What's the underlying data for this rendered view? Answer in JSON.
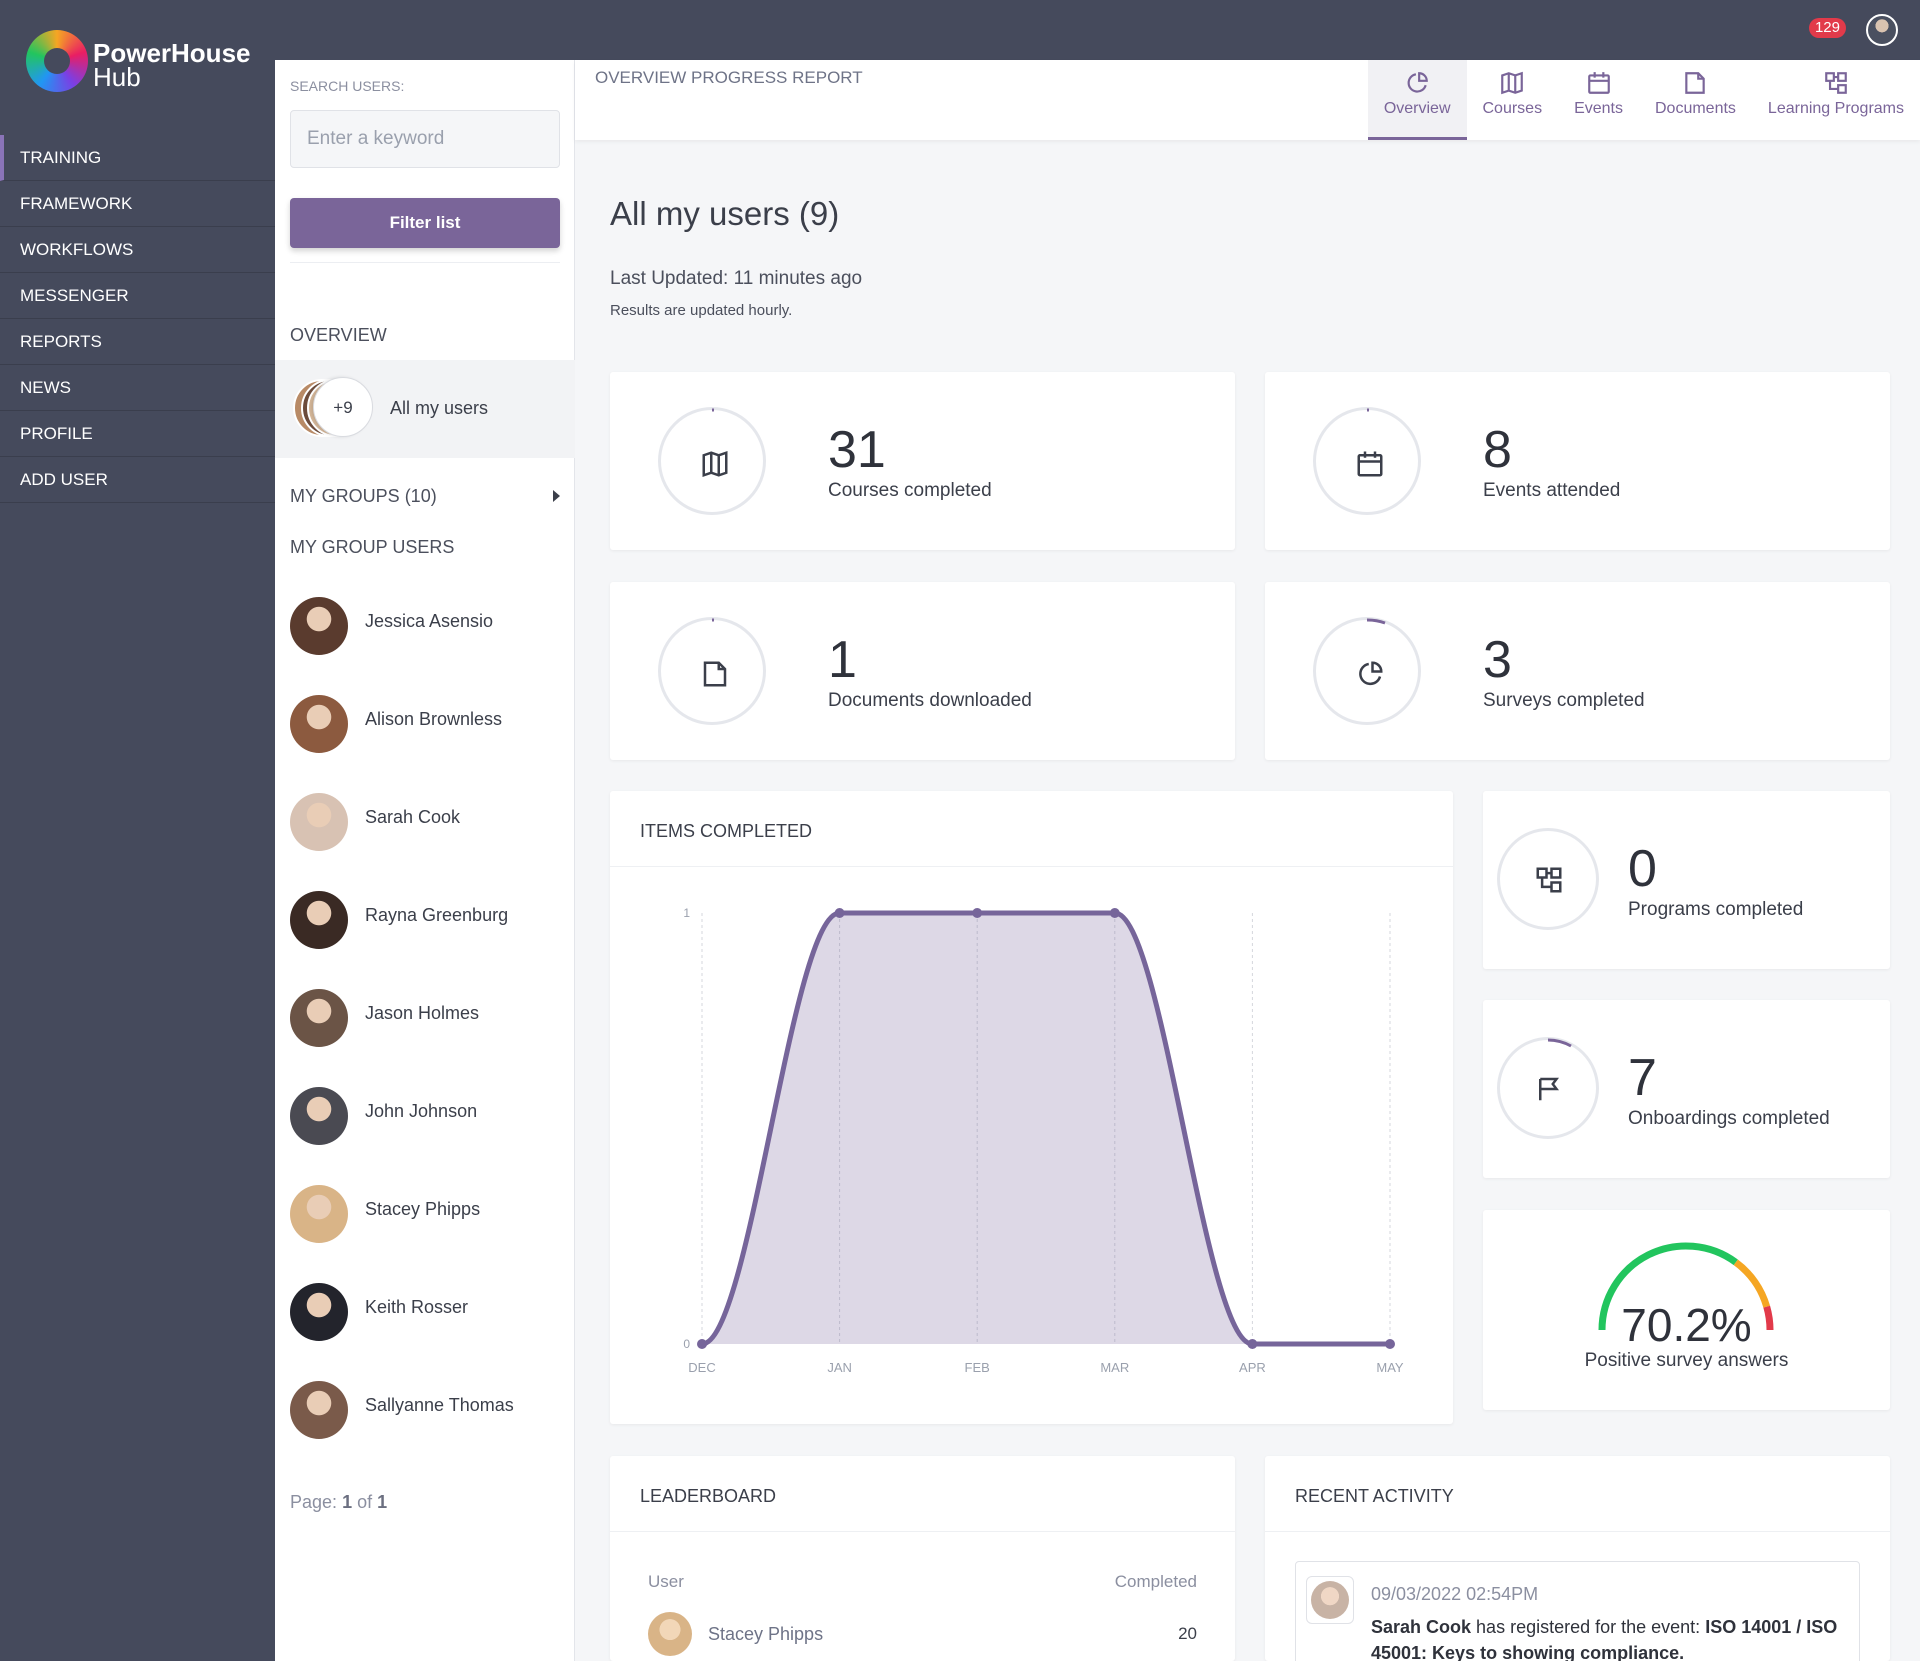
{
  "brand": {
    "name_bold": "PowerHouse",
    "name_light": "Hub"
  },
  "topbar": {
    "notification_count": "129"
  },
  "nav": {
    "items": [
      "TRAINING",
      "FRAMEWORK",
      "WORKFLOWS",
      "MESSENGER",
      "REPORTS",
      "NEWS",
      "PROFILE",
      "ADD USER"
    ],
    "active": "TRAINING"
  },
  "panel": {
    "search_label": "SEARCH USERS:",
    "search_placeholder": "Enter a keyword",
    "filter_button": "Filter list",
    "overview_title": "OVERVIEW",
    "all_users_badge": "+9",
    "all_users_label": "All my users",
    "my_groups": "MY GROUPS (10)",
    "my_group_users": "MY GROUP USERS",
    "users": [
      {
        "name": "Jessica Asensio",
        "color": "#5a3b2e"
      },
      {
        "name": "Alison Brownless",
        "color": "#8c5a3f"
      },
      {
        "name": "Sarah Cook",
        "color": "#d8c2b3"
      },
      {
        "name": "Rayna Greenburg",
        "color": "#3a2a24"
      },
      {
        "name": "Jason Holmes",
        "color": "#6b5446"
      },
      {
        "name": "John Johnson",
        "color": "#4a4a52"
      },
      {
        "name": "Stacey Phipps",
        "color": "#d9b487"
      },
      {
        "name": "Keith Rosser",
        "color": "#23242c"
      },
      {
        "name": "Sallyanne Thomas",
        "color": "#7a5a4a"
      }
    ],
    "pager_prefix": "Page:",
    "pager_current": "1",
    "pager_of": "of",
    "pager_total": "1"
  },
  "header": {
    "title": "OVERVIEW PROGRESS REPORT",
    "tabs": [
      "Overview",
      "Courses",
      "Events",
      "Documents",
      "Learning Programs"
    ],
    "active_tab": "Overview"
  },
  "main": {
    "heading": "All my users (9)",
    "last_updated": "Last Updated: 11 minutes ago",
    "update_note": "Results are updated hourly."
  },
  "stats": {
    "courses": {
      "value": "31",
      "label": "Courses completed",
      "icon": "book-icon"
    },
    "events": {
      "value": "8",
      "label": "Events attended",
      "icon": "calendar-icon"
    },
    "documents": {
      "value": "1",
      "label": "Documents downloaded",
      "icon": "document-icon"
    },
    "surveys": {
      "value": "3",
      "label": "Surveys completed",
      "icon": "pie-chart-icon"
    },
    "programs": {
      "value": "0",
      "label": "Programs completed",
      "icon": "sitemap-icon"
    },
    "onboardings": {
      "value": "7",
      "label": "Onboardings completed",
      "icon": "flag-icon"
    },
    "positive": {
      "value": "70.2%",
      "label": "Positive survey answers",
      "fraction": 0.702
    }
  },
  "chart_data": {
    "type": "area",
    "title": "ITEMS COMPLETED",
    "categories": [
      "DEC",
      "JAN",
      "FEB",
      "MAR",
      "APR",
      "MAY"
    ],
    "values": [
      0,
      1,
      1,
      1,
      0,
      0
    ],
    "ylim": [
      0,
      1
    ],
    "yticks": [
      "0",
      "1"
    ],
    "color": "#76659a"
  },
  "leaderboard": {
    "title": "LEADERBOARD",
    "col_user": "User",
    "col_completed": "Completed",
    "rows": [
      {
        "name": "Stacey Phipps",
        "completed": "20"
      }
    ]
  },
  "activity": {
    "title": "RECENT ACTIVITY",
    "items": [
      {
        "date": "09/03/2022 02:54PM",
        "actor": "Sarah Cook",
        "text": "has registered for the event:",
        "target": "ISO 14001 / ISO 45001: Keys to showing compliance."
      }
    ]
  },
  "colors": {
    "accent": "#7a6599",
    "nav": "#454a5c",
    "gauge_green": "#22c55e",
    "gauge_orange": "#f5a623",
    "gauge_red": "#e23a4a"
  }
}
